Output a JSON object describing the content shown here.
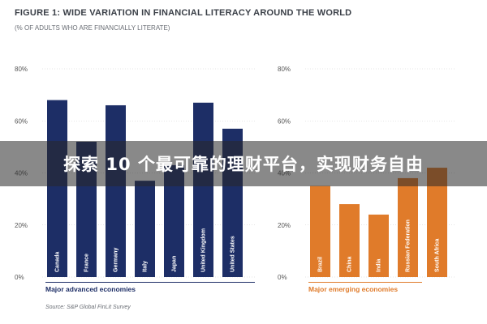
{
  "figure": {
    "title": "FIGURE 1: WIDE VARIATION IN FINANCIAL LITERACY AROUND THE WORLD",
    "subtitle": "(% OF ADULTS WHO ARE FINANCIALLY LITERATE)",
    "source": "Source: S&P Global FinLit Survey"
  },
  "banner": {
    "text": "探索 10 个最可靠的理财平台，实现财务自由"
  },
  "colors": {
    "advanced": "#1d2e66",
    "emerging": "#e07b2a",
    "axis_text": "#555555",
    "grid": "#cccccc"
  },
  "chart_data": [
    {
      "type": "bar",
      "categories": [
        "Canada",
        "France",
        "Germany",
        "Italy",
        "Japan",
        "United Kingdom",
        "United States"
      ],
      "values": [
        68,
        52,
        66,
        37,
        43,
        67,
        57
      ],
      "xlabel": "Major advanced economies",
      "ylabel": "",
      "ylim": [
        0,
        80
      ],
      "yticks": [
        "0%",
        "20%",
        "40%",
        "60%",
        "80%"
      ],
      "grid": true
    },
    {
      "type": "bar",
      "categories": [
        "Brazil",
        "China",
        "India",
        "Russian Federation",
        "South Africa"
      ],
      "values": [
        35,
        28,
        24,
        38,
        42
      ],
      "xlabel": "Major emerging economies",
      "ylabel": "",
      "ylim": [
        0,
        80
      ],
      "yticks": [
        "0%",
        "20%",
        "40%",
        "60%",
        "80%"
      ],
      "grid": true
    }
  ]
}
